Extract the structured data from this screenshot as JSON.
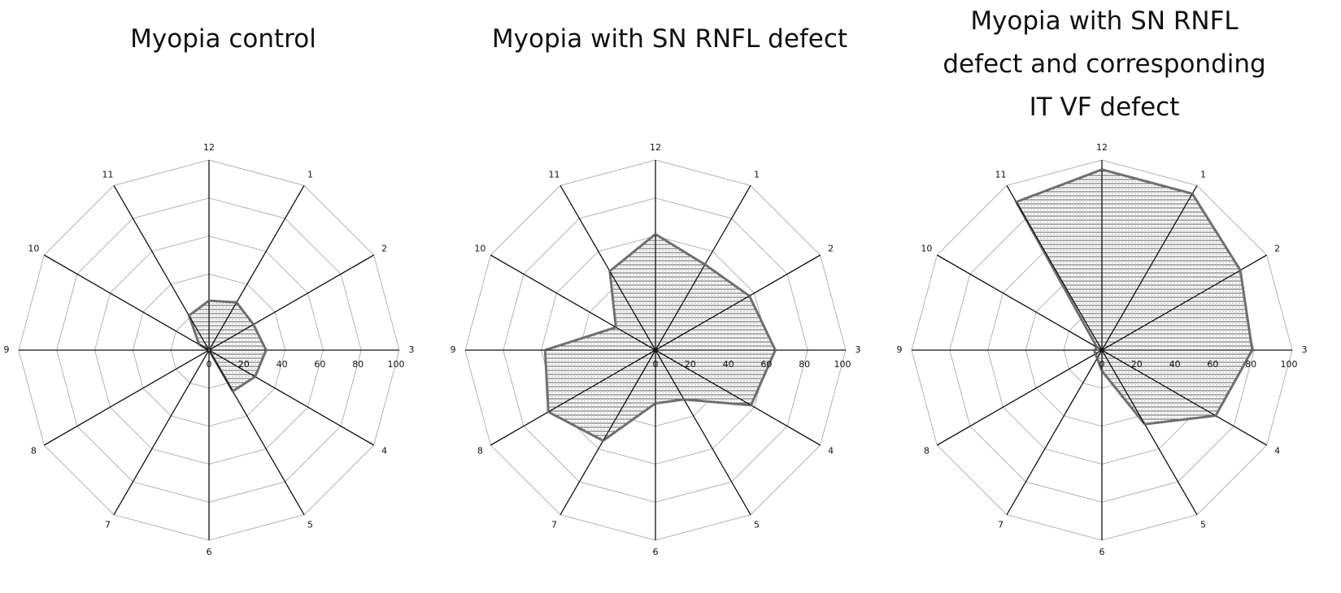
{
  "chart_data": [
    {
      "type": "radar",
      "title": "Myopia control",
      "categories": [
        "12",
        "1",
        "2",
        "3",
        "4",
        "5",
        "6",
        "7",
        "8",
        "9",
        "10",
        "11"
      ],
      "rlim": [
        0,
        100
      ],
      "rticks": [
        "0",
        "20",
        "40",
        "60",
        "80",
        "100"
      ],
      "values": [
        26,
        29,
        27,
        30,
        28,
        25,
        0,
        0,
        0,
        0,
        6,
        21
      ]
    },
    {
      "type": "radar",
      "title": "Myopia with SN RNFL defect",
      "categories": [
        "12",
        "1",
        "2",
        "3",
        "4",
        "5",
        "6",
        "7",
        "8",
        "9",
        "10",
        "11"
      ],
      "rlim": [
        0,
        100
      ],
      "rticks": [
        "0",
        "20",
        "40",
        "60",
        "80",
        "100"
      ],
      "values": [
        61,
        52,
        57,
        63,
        58,
        30,
        28,
        55,
        65,
        58,
        24,
        48
      ]
    },
    {
      "type": "radar",
      "title": "Myopia with SN RNFL defect and corresponding IT VF defect",
      "categories": [
        "12",
        "1",
        "2",
        "3",
        "4",
        "5",
        "6",
        "7",
        "8",
        "9",
        "10",
        "11"
      ],
      "rlim": [
        0,
        100
      ],
      "rticks": [
        "0",
        "20",
        "40",
        "60",
        "80",
        "100"
      ],
      "values": [
        95,
        95,
        84,
        79,
        69,
        45,
        11,
        5,
        4,
        4,
        3,
        90
      ]
    }
  ]
}
